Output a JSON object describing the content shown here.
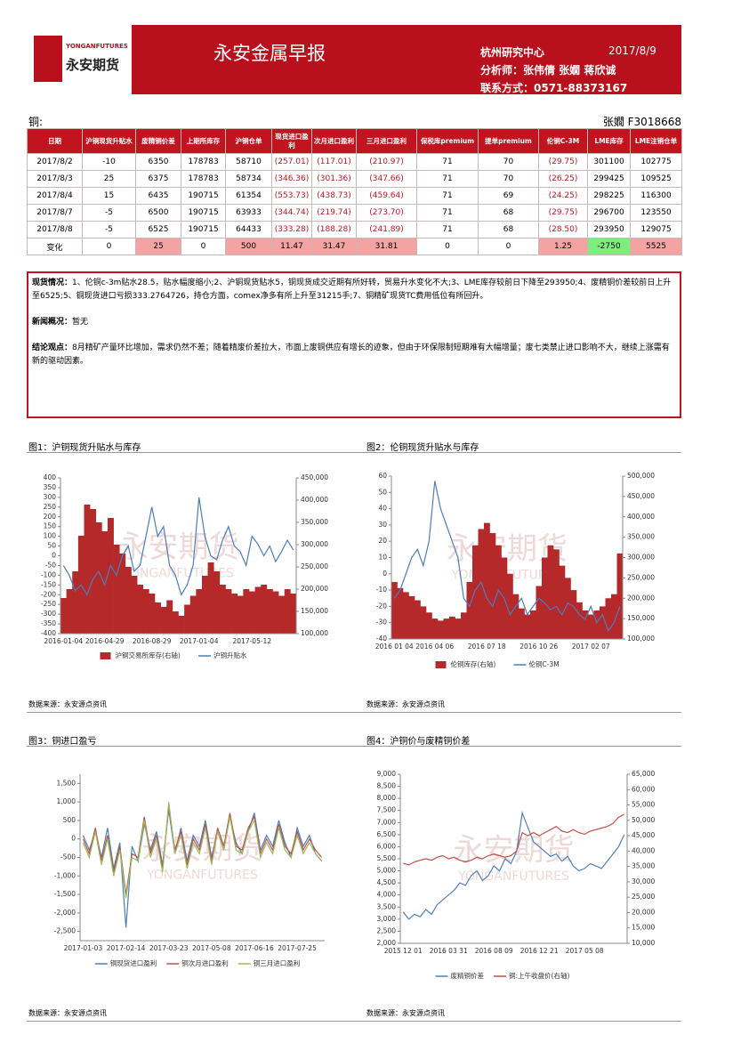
{
  "header": {
    "title": "永安金属早报",
    "logo_brand": "YONGANFUTURES",
    "logo_name": "永安期货",
    "org": "杭州研究中心",
    "date": "2017/8/9",
    "analysts": "分析师：张伟倩 张嫺 蒋欣诚",
    "contact": "联系方式：0571-88373167"
  },
  "section": {
    "name": "铜:",
    "author": "张嫺 F3018668"
  },
  "table": {
    "headers": [
      "日期",
      "沪铜现货升贴水",
      "废精铜价差",
      "上期所库存",
      "沪铜仓单",
      "现货进口盈利",
      "次月进口盈利",
      "三月进口盈利",
      "保税库premium",
      "提单premium",
      "伦铜C-3M",
      "LME库存",
      "LME注销仓单"
    ],
    "rows": [
      [
        "2017/8/2",
        "-10",
        "6350",
        "178783",
        "58710",
        "(257.01)",
        "(117.01)",
        "(210.97)",
        "71",
        "70",
        "(29.75)",
        "301100",
        "102775"
      ],
      [
        "2017/8/3",
        "25",
        "6375",
        "178783",
        "58734",
        "(346.36)",
        "(301.36)",
        "(347.66)",
        "71",
        "70",
        "(26.25)",
        "299425",
        "109525"
      ],
      [
        "2017/8/4",
        "15",
        "6435",
        "190715",
        "61354",
        "(553.73)",
        "(438.73)",
        "(459.64)",
        "71",
        "69",
        "(24.25)",
        "298225",
        "116300"
      ],
      [
        "2017/8/7",
        "-5",
        "6500",
        "190715",
        "63933",
        "(344.74)",
        "(219.74)",
        "(273.70)",
        "71",
        "68",
        "(29.75)",
        "296700",
        "123550"
      ],
      [
        "2017/8/8",
        "-5",
        "6525",
        "190715",
        "64433",
        "(333.28)",
        "(188.28)",
        "(241.89)",
        "71",
        "68",
        "(28.50)",
        "293950",
        "129075"
      ],
      [
        "变化",
        "0",
        "25",
        "0",
        "500",
        "11.47",
        "31.47",
        "31.81",
        "0",
        "0",
        "1.25",
        "-2750",
        "5525"
      ]
    ]
  },
  "commentary": [
    {
      "label": "现货情况：",
      "text": "1、伦铜c-3m贴水28.5，贴水幅度缩小;2、沪铜现货贴水5，铜现货成交近期有所好转，贸易升水变化不大;3、LME库存较前日下降至293950;4、废精铜价差较前日上升至6525;5、铜现货进口亏损333.2764726，持仓方面，comex净多有所上升至31215手;7、铜精矿现货TC费用低位有所回升。"
    },
    {
      "label": "新闻概况：",
      "text": "暂无"
    },
    {
      "label": "结论观点：",
      "text": "8月精矿产量环比增加，需求仍然不差；随着精废价差拉大，市面上废铜供应有增长的迹象，但由于环保限制短期难有大幅增量；废七类禁止进口影响不大，继续上涨需有新的驱动因素。"
    }
  ],
  "charts": [
    {
      "type": "combo",
      "title": "图1：沪铜现货升贴水与库存",
      "source": "数据来源：永安源点资讯",
      "categories": [
        "2016-01-04",
        null,
        null,
        null,
        null,
        null,
        null,
        "2016-04-29",
        null,
        null,
        null,
        null,
        null,
        null,
        null,
        "2016-08-29",
        null,
        null,
        null,
        null,
        null,
        null,
        null,
        "2017-01-04",
        null,
        null,
        null,
        null,
        null,
        null,
        null,
        null,
        "2017-05-12",
        null,
        null,
        null,
        null,
        null,
        null,
        null
      ],
      "ylim": [
        -400,
        400
      ],
      "yticks": [
        -400,
        -350,
        -300,
        -250,
        -200,
        -150,
        -100,
        -50,
        0,
        50,
        100,
        150,
        200,
        250,
        300,
        350,
        400
      ],
      "y2lim": [
        100000,
        450000
      ],
      "y2ticks": [
        {
          "value": 100000,
          "label": "100,000"
        },
        {
          "value": 150000,
          "label": "150,000"
        },
        {
          "value": 200000,
          "label": "200,000"
        },
        {
          "value": 250000,
          "label": "250,000"
        },
        {
          "value": 300000,
          "label": "300,000"
        },
        {
          "value": 350000,
          "label": "350,000"
        },
        {
          "value": 400000,
          "label": "400,000"
        },
        {
          "value": 450000,
          "label": "450,000"
        }
      ],
      "series": [
        {
          "name": "沪铜交易所库存(右轴)",
          "type": "bar",
          "axis": "y2",
          "color": "#b5292b",
          "values": [
            180000,
            200000,
            240000,
            320000,
            390000,
            380000,
            350000,
            330000,
            360000,
            300000,
            280000,
            250000,
            230000,
            210000,
            200000,
            190000,
            170000,
            160000,
            175000,
            150000,
            140000,
            165000,
            185000,
            200000,
            230000,
            260000,
            240000,
            210000,
            200000,
            190000,
            185000,
            200000,
            195000,
            205000,
            210000,
            200000,
            195000,
            185000,
            200000,
            190000
          ]
        },
        {
          "name": "沪铜升贴水",
          "type": "line",
          "color": "#4a7ebb",
          "values": [
            -50,
            -100,
            -180,
            -150,
            -200,
            -120,
            -80,
            -150,
            -50,
            -100,
            0,
            50,
            -80,
            -50,
            100,
            250,
            100,
            150,
            -50,
            -100,
            -200,
            -150,
            -50,
            300,
            100,
            0,
            -20,
            80,
            150,
            50,
            20,
            -50,
            100,
            60,
            0,
            50,
            -30,
            20,
            80,
            30
          ]
        }
      ]
    },
    {
      "type": "combo",
      "title": "图2：伦铜现货升贴水与库存",
      "source": "数据来源：永安源点资讯",
      "categories": [
        "2016 01 04",
        null,
        null,
        null,
        null,
        null,
        null,
        "2016 04 06",
        null,
        null,
        null,
        null,
        null,
        null,
        null,
        null,
        "2016 07 18",
        null,
        null,
        null,
        null,
        null,
        null,
        null,
        null,
        "2016 10 26",
        null,
        null,
        null,
        null,
        null,
        null,
        null,
        null,
        "2017 02 07",
        null,
        null,
        null,
        null,
        null
      ],
      "ylim": [
        -40,
        60
      ],
      "yticks": [
        -40,
        -30,
        -20,
        -10,
        0,
        10,
        20,
        30,
        40,
        50,
        60
      ],
      "y2lim": [
        100000,
        500000
      ],
      "y2ticks": [
        {
          "value": 100000,
          "label": "100,000"
        },
        {
          "value": 150000,
          "label": "150,000"
        },
        {
          "value": 200000,
          "label": "200,000"
        },
        {
          "value": 250000,
          "label": "250,000"
        },
        {
          "value": 300000,
          "label": "300,000"
        },
        {
          "value": 350000,
          "label": "350,000"
        },
        {
          "value": 400000,
          "label": "400,000"
        },
        {
          "value": 450000,
          "label": "450,000"
        },
        {
          "value": 500000,
          "label": "500,000"
        }
      ],
      "series": [
        {
          "name": "伦铜库存(右轴)",
          "type": "bar",
          "axis": "y2",
          "color": "#b5292b",
          "values": [
            240000,
            225000,
            215000,
            205000,
            195000,
            180000,
            165000,
            150000,
            145000,
            150000,
            155000,
            150000,
            165000,
            240000,
            330000,
            370000,
            385000,
            360000,
            330000,
            300000,
            260000,
            210000,
            175000,
            160000,
            170000,
            230000,
            300000,
            330000,
            320000,
            280000,
            250000,
            220000,
            190000,
            170000,
            160000,
            170000,
            180000,
            200000,
            210000,
            310000
          ]
        },
        {
          "name": "伦铜C-3M",
          "type": "line",
          "color": "#4a7ebb",
          "values": [
            -15,
            -10,
            0,
            10,
            15,
            5,
            20,
            57,
            40,
            30,
            20,
            10,
            -15,
            -20,
            -10,
            -5,
            -15,
            -20,
            -10,
            -15,
            -25,
            -20,
            -15,
            -25,
            -20,
            -15,
            -18,
            -22,
            -20,
            -25,
            -18,
            -20,
            -25,
            -28,
            -20,
            -30,
            -25,
            -35,
            -30,
            -20
          ]
        }
      ]
    },
    {
      "type": "combo",
      "title": "图3：铜进口盈亏",
      "source": "数据来源：永安源点资讯",
      "categories": [
        "2017-01-03",
        null,
        null,
        null,
        null,
        null,
        null,
        "2017-02-14",
        null,
        null,
        null,
        null,
        null,
        null,
        "2017-03-23",
        null,
        null,
        null,
        null,
        null,
        null,
        "2017-05-08",
        null,
        null,
        null,
        null,
        null,
        null,
        "2017-06-16",
        null,
        null,
        null,
        null,
        null,
        null,
        "2017-07-25",
        null,
        null,
        null,
        null
      ],
      "ylim": [
        -2750,
        1750
      ],
      "yticks": [
        {
          "value": -2500,
          "label": "-2,500"
        },
        {
          "value": -2000,
          "label": "-2,000"
        },
        {
          "value": -1500,
          "label": "-1,500"
        },
        {
          "value": -1000,
          "label": "-1,000"
        },
        -500,
        0,
        500,
        {
          "value": 1000,
          "label": "1,000"
        },
        {
          "value": 1500,
          "label": "1,500"
        }
      ],
      "series": [
        {
          "name": "铜现货进口盈利",
          "type": "line",
          "color": "#4a7ebb",
          "values": [
            100,
            -300,
            200,
            -500,
            300,
            -800,
            -100,
            -2400,
            -200,
            -600,
            400,
            -300,
            200,
            -700,
            800,
            -400,
            300,
            -600,
            100,
            -200,
            500,
            -500,
            200,
            -300,
            600,
            -100,
            -400,
            200,
            700,
            -300,
            100,
            -200,
            500,
            -100,
            -500,
            300,
            -200,
            100,
            -400,
            -600
          ]
        },
        {
          "name": "铜次月进口盈利",
          "type": "line",
          "color": "#c0504d",
          "values": [
            0,
            -400,
            300,
            -600,
            100,
            -900,
            -200,
            -1500,
            -400,
            -500,
            600,
            -400,
            100,
            -800,
            900,
            -300,
            200,
            -700,
            0,
            -300,
            400,
            -600,
            300,
            -200,
            700,
            -200,
            -300,
            300,
            600,
            -400,
            0,
            -300,
            400,
            -200,
            -400,
            200,
            -300,
            0,
            -300,
            -500
          ]
        },
        {
          "name": "铜三月进口盈利",
          "type": "line",
          "color": "#9bbb59",
          "values": [
            -100,
            -500,
            200,
            -700,
            0,
            -1000,
            -300,
            -1600,
            -500,
            -600,
            500,
            -500,
            0,
            -900,
            1000,
            -400,
            100,
            -800,
            -100,
            -400,
            300,
            -700,
            200,
            -300,
            600,
            -300,
            -400,
            200,
            500,
            -500,
            -100,
            -400,
            300,
            -300,
            -500,
            100,
            -400,
            -100,
            -400,
            -600
          ]
        }
      ]
    },
    {
      "type": "combo",
      "title": "图4：沪铜价与废精铜价差",
      "source": "数据来源：永安源点资讯",
      "categories": [
        "2015 12 01",
        null,
        null,
        null,
        null,
        null,
        null,
        null,
        "2016 03 31",
        null,
        null,
        null,
        null,
        null,
        null,
        null,
        "2016 08 09",
        null,
        null,
        null,
        null,
        null,
        null,
        null,
        "2016 12 21",
        null,
        null,
        null,
        null,
        null,
        null,
        null,
        "2017 05 08",
        null,
        null,
        null,
        null,
        null,
        null,
        null
      ],
      "ylim": [
        2000,
        9000
      ],
      "yticks": [
        {
          "value": 2000,
          "label": "2,000"
        },
        {
          "value": 2500,
          "label": "2,500"
        },
        {
          "value": 3000,
          "label": "3,000"
        },
        {
          "value": 3500,
          "label": "3,500"
        },
        {
          "value": 4000,
          "label": "4,000"
        },
        {
          "value": 4500,
          "label": "4,500"
        },
        {
          "value": 5000,
          "label": "5,000"
        },
        {
          "value": 5500,
          "label": "5,500"
        },
        {
          "value": 6000,
          "label": "6,000"
        },
        {
          "value": 6500,
          "label": "6,500"
        },
        {
          "value": 7000,
          "label": "7,000"
        },
        {
          "value": 7500,
          "label": "7,500"
        },
        {
          "value": 8000,
          "label": "8,000"
        },
        {
          "value": 8500,
          "label": "8,500"
        },
        {
          "value": 9000,
          "label": "9,000"
        }
      ],
      "y2lim": [
        10000,
        65000
      ],
      "y2ticks": [
        {
          "value": 10000,
          "label": "10,000"
        },
        {
          "value": 15000,
          "label": "15,000"
        },
        {
          "value": 20000,
          "label": "20,000"
        },
        {
          "value": 25000,
          "label": "25,000"
        },
        {
          "value": 30000,
          "label": "30,000"
        },
        {
          "value": 35000,
          "label": "35,000"
        },
        {
          "value": 40000,
          "label": "40,000"
        },
        {
          "value": 45000,
          "label": "45,000"
        },
        {
          "value": 50000,
          "label": "50,000"
        },
        {
          "value": 55000,
          "label": "55,000"
        },
        {
          "value": 60000,
          "label": "60,000"
        },
        {
          "value": 65000,
          "label": "65,000"
        }
      ],
      "series": [
        {
          "name": "废精铜价差",
          "type": "line",
          "color": "#4f81bd",
          "values": [
            3300,
            3000,
            3200,
            3100,
            3400,
            3200,
            3600,
            3800,
            4000,
            4200,
            4500,
            4400,
            4800,
            5000,
            4600,
            4800,
            5200,
            5000,
            5500,
            5300,
            5800,
            7400,
            6800,
            6200,
            6000,
            5800,
            5600,
            5700,
            5400,
            5600,
            5200,
            5000,
            5100,
            5300,
            5200,
            5100,
            5400,
            5700,
            6000,
            6500
          ]
        },
        {
          "name": "铜:上午收盘价(右轴)",
          "type": "line",
          "axis": "y2",
          "color": "#c0504d",
          "values": [
            36000,
            35500,
            36500,
            37000,
            37500,
            37000,
            38000,
            38500,
            37500,
            38000,
            37000,
            36500,
            37000,
            38000,
            37500,
            38500,
            39000,
            38500,
            38000,
            38500,
            40000,
            46000,
            45000,
            46000,
            45000,
            46000,
            47000,
            48000,
            46500,
            46000,
            47000,
            46000,
            45500,
            46500,
            47000,
            47500,
            48000,
            49000,
            51000,
            52000
          ]
        }
      ]
    }
  ]
}
